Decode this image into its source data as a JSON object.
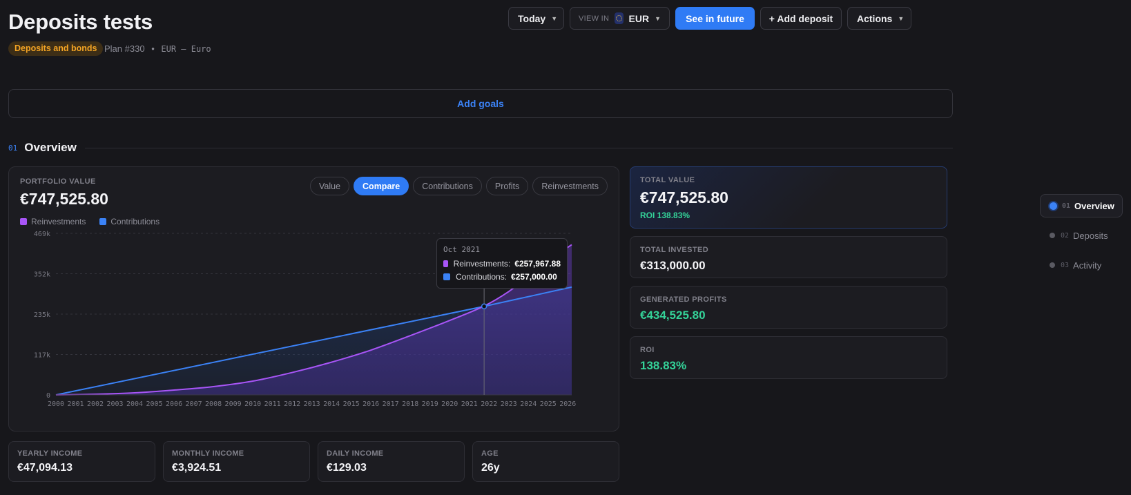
{
  "header": {
    "title": "Deposits tests",
    "badge": "Deposits and bonds",
    "plan": "Plan #330",
    "separator": "•",
    "currency_label": "EUR — Euro"
  },
  "toolbar": {
    "date_label": "Today",
    "view_in_label": "VIEW IN",
    "view_in_currency": "EUR",
    "future_label": "See in future",
    "add_deposit_label": "+ Add deposit",
    "actions_label": "Actions"
  },
  "goals": {
    "label": "Add goals"
  },
  "section": {
    "number": "01",
    "title": "Overview"
  },
  "portfolio": {
    "label": "PORTFOLIO VALUE",
    "value": "€747,525.80",
    "legend": [
      {
        "label": "Reinvestments",
        "color": "#a855f7"
      },
      {
        "label": "Contributions",
        "color": "#3b82f6"
      }
    ],
    "tabs": [
      {
        "label": "Value",
        "active": false
      },
      {
        "label": "Compare",
        "active": true
      },
      {
        "label": "Contributions",
        "active": false
      },
      {
        "label": "Profits",
        "active": false
      },
      {
        "label": "Reinvestments",
        "active": false
      }
    ],
    "tooltip": {
      "date": "Oct 2021",
      "rows": [
        {
          "label": "Reinvestments:",
          "value": "€257,967.88",
          "color": "#a855f7"
        },
        {
          "label": "Contributions:",
          "value": "€257,000.00",
          "color": "#3b82f6"
        }
      ]
    }
  },
  "chart_data": {
    "type": "area",
    "x": [
      2000,
      2001,
      2002,
      2003,
      2004,
      2005,
      2006,
      2007,
      2008,
      2009,
      2010,
      2011,
      2012,
      2013,
      2014,
      2015,
      2016,
      2017,
      2018,
      2019,
      2020,
      2021,
      2022,
      2023,
      2024,
      2025,
      2026
    ],
    "x_tick_labels": [
      "2000",
      "2001",
      "2002",
      "2003",
      "2004",
      "2005",
      "2006",
      "2007",
      "2008",
      "2009",
      "2010",
      "2011",
      "2012",
      "2013",
      "2014",
      "2015",
      "2016",
      "2017",
      "2018",
      "2019",
      "2020",
      "2021",
      "2022",
      "2023",
      "2024",
      "2025",
      "2026"
    ],
    "y_tick_labels": [
      "0",
      "117k",
      "235k",
      "352k",
      "469k"
    ],
    "ylim": [
      0,
      469000
    ],
    "xlim": [
      2000,
      2026.2
    ],
    "series": [
      {
        "name": "Reinvestments",
        "color": "#a855f7",
        "x": [
          2000,
          2002,
          2004,
          2006,
          2008,
          2010,
          2012,
          2014,
          2016,
          2018,
          2020,
          2021.75,
          2023,
          2024,
          2025,
          2026.2
        ],
        "values": [
          0,
          2000,
          6000,
          14000,
          24000,
          40000,
          65000,
          95000,
          130000,
          172000,
          216000,
          257968,
          300000,
          345000,
          390000,
          436000
        ]
      },
      {
        "name": "Contributions",
        "color": "#3b82f6",
        "x": [
          2000,
          2021.75,
          2026.2
        ],
        "values": [
          0,
          257000,
          313000
        ]
      }
    ],
    "hover_x": 2021.75,
    "grid": true
  },
  "stats": {
    "total": {
      "label": "TOTAL VALUE",
      "value": "€747,525.80",
      "roi": "ROI 138.83%"
    },
    "invested": {
      "label": "TOTAL INVESTED",
      "value": "€313,000.00"
    },
    "profits": {
      "label": "GENERATED PROFITS",
      "value": "€434,525.80"
    },
    "roi": {
      "label": "ROI",
      "value": "138.83%"
    }
  },
  "income": [
    {
      "label": "YEARLY INCOME",
      "value": "€47,094.13"
    },
    {
      "label": "MONTHLY INCOME",
      "value": "€3,924.51"
    },
    {
      "label": "DAILY INCOME",
      "value": "€129.03"
    },
    {
      "label": "AGE",
      "value": "26y"
    }
  ],
  "side_nav": [
    {
      "num": "01",
      "label": "Overview",
      "active": true
    },
    {
      "num": "02",
      "label": "Deposits",
      "active": false
    },
    {
      "num": "03",
      "label": "Activity",
      "active": false
    }
  ]
}
